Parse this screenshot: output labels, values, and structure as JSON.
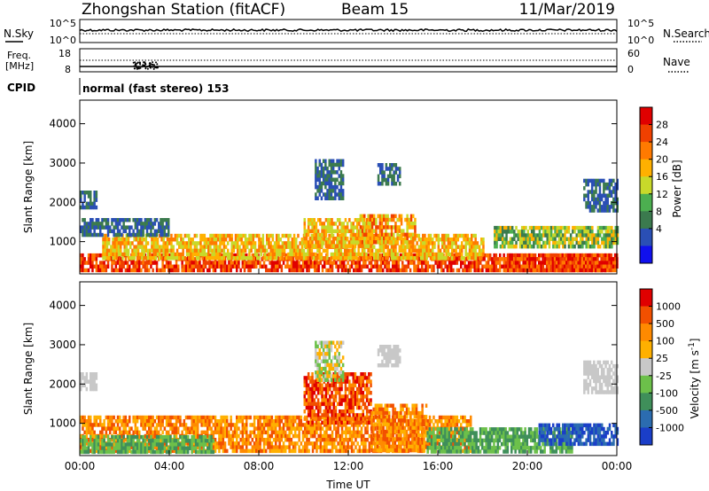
{
  "header": {
    "station": "Zhongshan Station (fitACF)",
    "beam": "Beam 15",
    "date": "11/Mar/2019"
  },
  "nsky_panel": {
    "left_label": "N.Sky",
    "right_label": "N.Search",
    "left_ticks": [
      "10^5",
      "10^0"
    ],
    "right_ticks": [
      "10^5",
      "10^0"
    ]
  },
  "freq_panel": {
    "left_label_1": "Freq.",
    "left_label_2": "[MHz]",
    "left_ticks": [
      "18",
      "8"
    ],
    "right_label": "Nave",
    "right_ticks": [
      "60",
      "0"
    ]
  },
  "cpid_panel": {
    "label": "CPID",
    "text": "normal (fast stereo) 153"
  },
  "chart_data": [
    {
      "type": "heatmap",
      "name": "power",
      "ylabel": "Slant Range [km]",
      "ylim": [
        180,
        4600
      ],
      "y_ticks": [
        1000,
        2000,
        3000,
        4000
      ],
      "xlabel": "Time UT",
      "x_ticks": [
        "00:00",
        "04:00",
        "08:00",
        "12:00",
        "16:00",
        "20:00",
        "00:00"
      ],
      "colorbar": {
        "label": "Power [dB]",
        "ticks": [
          "4",
          "8",
          "12",
          "16",
          "20",
          "24",
          "28"
        ],
        "colors": [
          "#1010ee",
          "#2a4fb5",
          "#3b7a4e",
          "#4caf50",
          "#c8d92a",
          "#ffb000",
          "#ff7a00",
          "#f04000",
          "#e00000"
        ]
      },
      "regions": [
        {
          "t0": 0,
          "t1": 24,
          "r0": 300,
          "r1": 700,
          "level": [
            6,
            8
          ]
        },
        {
          "t0": 1,
          "t1": 18,
          "r0": 600,
          "r1": 1200,
          "level": [
            4,
            6
          ]
        },
        {
          "t0": 0,
          "t1": 4,
          "r0": 1200,
          "r1": 1600,
          "level": [
            1,
            2
          ]
        },
        {
          "t0": 10,
          "t1": 13,
          "r0": 900,
          "r1": 1600,
          "level": [
            4,
            6
          ]
        },
        {
          "t0": 12.5,
          "t1": 15,
          "r0": 1000,
          "r1": 1700,
          "level": [
            4,
            7
          ]
        },
        {
          "t0": 13.3,
          "t1": 14.3,
          "r0": 2500,
          "r1": 3000,
          "level": [
            1,
            2
          ]
        },
        {
          "t0": 10.5,
          "t1": 11.8,
          "r0": 2100,
          "r1": 3100,
          "level": [
            1,
            2
          ]
        },
        {
          "t0": 18.5,
          "t1": 24,
          "r0": 900,
          "r1": 1400,
          "level": [
            2,
            5
          ]
        },
        {
          "t0": 19,
          "t1": 24,
          "r0": 300,
          "r1": 700,
          "level": [
            6,
            8
          ]
        },
        {
          "t0": 22.5,
          "t1": 24,
          "r0": 1800,
          "r1": 2600,
          "level": [
            1,
            2
          ]
        },
        {
          "t0": 0,
          "t1": 0.7,
          "r0": 1900,
          "r1": 2300,
          "level": [
            1,
            2
          ]
        }
      ]
    },
    {
      "type": "heatmap",
      "name": "velocity",
      "ylabel": "Slant Range [km]",
      "ylim": [
        180,
        4600
      ],
      "y_ticks": [
        1000,
        2000,
        3000,
        4000
      ],
      "xlabel": "Time UT",
      "x_ticks": [
        "00:00",
        "04:00",
        "08:00",
        "12:00",
        "16:00",
        "20:00",
        "00:00"
      ],
      "colorbar": {
        "label": "Velocity [m s^-1]",
        "ticks": [
          "1000",
          "500",
          "100",
          "25",
          "-25",
          "-100",
          "-500",
          "-1000"
        ],
        "colors": [
          "#1a3ec8",
          "#2b6cb0",
          "#3f8f5a",
          "#6cc04a",
          "#c8c8c8",
          "#ffb000",
          "#ff8a00",
          "#f25000",
          "#e00000"
        ]
      },
      "regions": [
        {
          "t0": 0,
          "t1": 17.5,
          "r0": 300,
          "r1": 1200,
          "level": [
            5,
            7
          ]
        },
        {
          "t0": 0,
          "t1": 6,
          "r0": 300,
          "r1": 700,
          "level": [
            2,
            3
          ]
        },
        {
          "t0": 10,
          "t1": 13,
          "r0": 1000,
          "r1": 2300,
          "level": [
            6,
            8
          ]
        },
        {
          "t0": 13,
          "t1": 15.5,
          "r0": 300,
          "r1": 1500,
          "level": [
            5,
            7
          ]
        },
        {
          "t0": 15.5,
          "t1": 22,
          "r0": 300,
          "r1": 900,
          "level": [
            2,
            3
          ]
        },
        {
          "t0": 20.5,
          "t1": 24,
          "r0": 500,
          "r1": 1000,
          "level": [
            0,
            1
          ]
        },
        {
          "t0": 13.3,
          "t1": 14.3,
          "r0": 2500,
          "r1": 3000,
          "level": [
            4,
            4
          ]
        },
        {
          "t0": 10.5,
          "t1": 11.8,
          "r0": 2100,
          "r1": 3100,
          "level": [
            3,
            5
          ]
        },
        {
          "t0": 0,
          "t1": 0.7,
          "r0": 1900,
          "r1": 2300,
          "level": [
            4,
            4
          ]
        },
        {
          "t0": 22.5,
          "t1": 24,
          "r0": 1800,
          "r1": 2600,
          "level": [
            4,
            4
          ]
        }
      ]
    }
  ]
}
